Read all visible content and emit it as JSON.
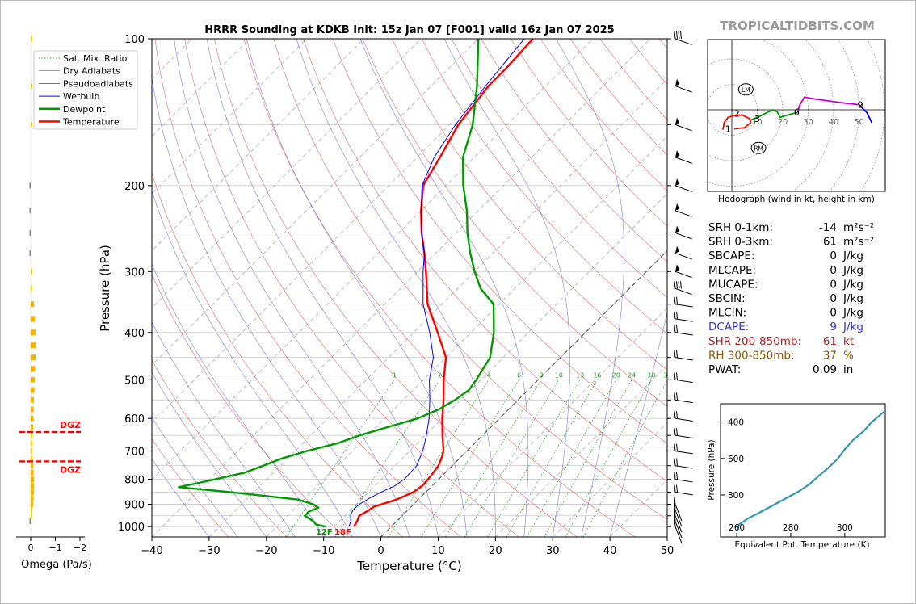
{
  "watermark": "TROPICALTIDBITS.COM",
  "chart_data": [
    {
      "type": "line",
      "subtype": "skew-t log-p sounding",
      "title": "HRRR Sounding at KDKB Init: 15z Jan 07 [F001] valid 16z Jan 07 2025",
      "xlabel": "Temperature (°C)",
      "ylabel": "Pressure (hPa)",
      "xlim": [
        -40,
        50
      ],
      "ylim": [
        1050,
        100
      ],
      "y_scale": "log",
      "x_ticks": [
        "−40",
        "−30",
        "−20",
        "−10",
        "0",
        "10",
        "20",
        "30",
        "40",
        "50"
      ],
      "y_ticks": [
        "100",
        "200",
        "300",
        "400",
        "500",
        "600",
        "700",
        "800",
        "900",
        "1000"
      ],
      "legend_position": "top-left",
      "legend": [
        {
          "label": "Sat. Mix. Ratio",
          "color": "#2ca02c",
          "style": "dotted"
        },
        {
          "label": "Dry Adiabats",
          "color": "#d62728",
          "style": "thin"
        },
        {
          "label": "Pseudoadiabats",
          "color": "#3a3acc",
          "style": "thin"
        },
        {
          "label": "Wetbulb",
          "color": "#0000ff",
          "style": "solid"
        },
        {
          "label": "Dewpoint",
          "color": "#009900",
          "style": "thick"
        },
        {
          "label": "Temperature",
          "color": "#ff0000",
          "style": "thick"
        }
      ],
      "mixing_ratio_labels": [
        "1",
        "2",
        "4",
        "6",
        "8",
        "10",
        "13",
        "16",
        "20",
        "24",
        "30",
        "36"
      ],
      "surface_labels": {
        "dewpoint": "12F",
        "temperature": "18F"
      },
      "series": [
        {
          "name": "Temperature",
          "points": [
            [
              1000,
              -6.5
            ],
            [
              970,
              -7
            ],
            [
              950,
              -7.5
            ],
            [
              930,
              -6.9
            ],
            [
              910,
              -6.5
            ],
            [
              880,
              -3.8
            ],
            [
              850,
              -2.2
            ],
            [
              825,
              -1.7
            ],
            [
              790,
              -1.9
            ],
            [
              750,
              -2.4
            ],
            [
              720,
              -3.3
            ],
            [
              700,
              -4.1
            ],
            [
              675,
              -5.5
            ],
            [
              650,
              -7
            ],
            [
              600,
              -10
            ],
            [
              550,
              -13
            ],
            [
              500,
              -16.5
            ],
            [
              450,
              -20
            ],
            [
              400,
              -25.8
            ],
            [
              350,
              -32.5
            ],
            [
              300,
              -38.5
            ],
            [
              275,
              -42
            ],
            [
              250,
              -46
            ],
            [
              225,
              -50
            ],
            [
              200,
              -54
            ],
            [
              175,
              -56
            ],
            [
              150,
              -58.5
            ],
            [
              125,
              -60
            ],
            [
              115,
              -60
            ],
            [
              100,
              -60.5
            ]
          ]
        },
        {
          "name": "Wetbulb",
          "points": [
            [
              1000,
              -7.4
            ],
            [
              975,
              -8
            ],
            [
              950,
              -9
            ],
            [
              925,
              -9.6
            ],
            [
              900,
              -9.5
            ],
            [
              875,
              -8.8
            ],
            [
              850,
              -7.8
            ],
            [
              825,
              -6.5
            ],
            [
              800,
              -6
            ],
            [
              750,
              -6.2
            ],
            [
              700,
              -7.7
            ],
            [
              650,
              -9.8
            ],
            [
              600,
              -12.3
            ],
            [
              550,
              -15.4
            ],
            [
              500,
              -19
            ],
            [
              450,
              -22.2
            ],
            [
              400,
              -27.2
            ],
            [
              350,
              -33.3
            ],
            [
              300,
              -39
            ],
            [
              275,
              -42
            ],
            [
              250,
              -46
            ],
            [
              225,
              -50
            ],
            [
              200,
              -54.2
            ],
            [
              175,
              -57
            ],
            [
              150,
              -59
            ],
            [
              125,
              -60.5
            ],
            [
              100,
              -62
            ]
          ]
        },
        {
          "name": "Dewpoint",
          "points": [
            [
              1000,
              -11.5
            ],
            [
              990,
              -13.5
            ],
            [
              975,
              -14.5
            ],
            [
              950,
              -17
            ],
            [
              930,
              -17
            ],
            [
              915,
              -16
            ],
            [
              900,
              -17.5
            ],
            [
              880,
              -21
            ],
            [
              850,
              -34
            ],
            [
              830,
              -44
            ],
            [
              800,
              -39
            ],
            [
              775,
              -35
            ],
            [
              750,
              -33
            ],
            [
              725,
              -31
            ],
            [
              700,
              -28
            ],
            [
              675,
              -24
            ],
            [
              650,
              -21.5
            ],
            [
              625,
              -18
            ],
            [
              600,
              -14.3
            ],
            [
              575,
              -12.2
            ],
            [
              550,
              -11
            ],
            [
              525,
              -10.3
            ],
            [
              500,
              -10.8
            ],
            [
              450,
              -12.3
            ],
            [
              400,
              -16
            ],
            [
              350,
              -21
            ],
            [
              325,
              -26
            ],
            [
              300,
              -30
            ],
            [
              275,
              -34
            ],
            [
              250,
              -38
            ],
            [
              225,
              -42
            ],
            [
              200,
              -47
            ],
            [
              175,
              -52
            ],
            [
              150,
              -56
            ],
            [
              125,
              -62
            ],
            [
              100,
              -70
            ]
          ]
        }
      ],
      "wind_barb_levels": [
        "100",
        "125",
        "150",
        "175",
        "200",
        "225",
        "250",
        "275",
        "300",
        "325",
        "350",
        "375",
        "400",
        "450",
        "500",
        "550",
        "600",
        "650",
        "700",
        "750",
        "800",
        "850",
        "900",
        "925",
        "950",
        "975",
        "1000"
      ]
    },
    {
      "type": "bar",
      "subtype": "omega profile",
      "xlabel": "Omega (Pa/s)",
      "x_ticks": [
        "0",
        "−1",
        "−2"
      ],
      "annotations": [
        "DGZ",
        "DGZ"
      ],
      "dgz_levels_hpa": [
        640,
        735
      ],
      "bars": [
        {
          "pressure": 100,
          "value": -0.04,
          "color": "#ffd700"
        },
        {
          "pressure": 125,
          "value": -0.03,
          "color": "#ffd700"
        },
        {
          "pressure": 150,
          "value": -0.02,
          "color": "#ffd700"
        },
        {
          "pressure": 200,
          "value": 0.04,
          "color": "#888888"
        },
        {
          "pressure": 225,
          "value": 0.03,
          "color": "#888888"
        },
        {
          "pressure": 250,
          "value": 0.02,
          "color": "#888888"
        },
        {
          "pressure": 275,
          "value": 0.01,
          "color": "#888888"
        },
        {
          "pressure": 300,
          "value": -0.01,
          "color": "#ffd700"
        },
        {
          "pressure": 325,
          "value": -0.05,
          "color": "#ffd700"
        },
        {
          "pressure": 350,
          "value": -0.14,
          "color": "#f4b400"
        },
        {
          "pressure": 375,
          "value": -0.17,
          "color": "#f4b400"
        },
        {
          "pressure": 400,
          "value": -0.2,
          "color": "#f4b400"
        },
        {
          "pressure": 425,
          "value": -0.21,
          "color": "#f4b400"
        },
        {
          "pressure": 450,
          "value": -0.2,
          "color": "#f4b400"
        },
        {
          "pressure": 475,
          "value": -0.18,
          "color": "#f4b400"
        },
        {
          "pressure": 500,
          "value": -0.16,
          "color": "#f4b400"
        },
        {
          "pressure": 525,
          "value": -0.15,
          "color": "#f4b400"
        },
        {
          "pressure": 550,
          "value": -0.13,
          "color": "#f4b400"
        },
        {
          "pressure": 575,
          "value": -0.12,
          "color": "#f4b400"
        },
        {
          "pressure": 600,
          "value": -0.11,
          "color": "#f4b400"
        },
        {
          "pressure": 625,
          "value": -0.1,
          "color": "#f4b400"
        },
        {
          "pressure": 650,
          "value": -0.08,
          "color": "#ffd700"
        },
        {
          "pressure": 675,
          "value": -0.08,
          "color": "#ffd700"
        },
        {
          "pressure": 700,
          "value": -0.07,
          "color": "#ffd700"
        },
        {
          "pressure": 725,
          "value": -0.08,
          "color": "#ffd700"
        },
        {
          "pressure": 750,
          "value": -0.1,
          "color": "#f4b400"
        },
        {
          "pressure": 775,
          "value": -0.12,
          "color": "#f4b400"
        },
        {
          "pressure": 800,
          "value": -0.14,
          "color": "#f4b400"
        },
        {
          "pressure": 825,
          "value": -0.14,
          "color": "#f4b400"
        },
        {
          "pressure": 850,
          "value": -0.13,
          "color": "#f4b400"
        },
        {
          "pressure": 875,
          "value": -0.12,
          "color": "#f4b400"
        },
        {
          "pressure": 900,
          "value": -0.1,
          "color": "#f4b400"
        },
        {
          "pressure": 925,
          "value": -0.07,
          "color": "#ffd700"
        },
        {
          "pressure": 950,
          "value": -0.03,
          "color": "#ffd700"
        },
        {
          "pressure": 975,
          "value": 0.02,
          "color": "#888888"
        }
      ]
    },
    {
      "type": "line",
      "subtype": "hodograph",
      "xlabel": "Hodograph (wind in kt, height in km)",
      "ring_labels": [
        "10",
        "20",
        "30",
        "40",
        "50"
      ],
      "storm_motion_labels": [
        "LM",
        "RM"
      ],
      "storm_motion_kt": {
        "LM": [
          5.5,
          8
        ],
        "RM": [
          10.5,
          -15
        ]
      },
      "height_labels": [
        {
          "label": "1",
          "u": -1.5,
          "v": -7.5
        },
        {
          "label": "2",
          "u": 2,
          "v": -1.5
        },
        {
          "label": "3",
          "u": 10,
          "v": -3.5
        },
        {
          "label": "6",
          "u": 25.5,
          "v": -0.8
        },
        {
          "label": "9",
          "u": 50.5,
          "v": 2
        }
      ],
      "segments": [
        {
          "name": "0-3 km",
          "color": "#ff0000",
          "points": [
            [
              -3.5,
              -7.8
            ],
            [
              -3,
              -5
            ],
            [
              -1.5,
              -3
            ],
            [
              1,
              -2.2
            ],
            [
              4,
              -2
            ],
            [
              7,
              -3.5
            ],
            [
              7.5,
              -5
            ],
            [
              5,
              -7
            ],
            [
              1,
              -7.5
            ]
          ]
        },
        {
          "name": "3-6 km",
          "color": "#009900",
          "points": [
            [
              7.5,
              -4
            ],
            [
              11,
              -2.5
            ],
            [
              16,
              0
            ],
            [
              17.8,
              -0.7
            ],
            [
              19,
              -3
            ],
            [
              22,
              -2
            ],
            [
              26,
              -1
            ]
          ]
        },
        {
          "name": "6-9 km",
          "color": "#cc00cc",
          "points": [
            [
              26,
              -1
            ],
            [
              26.5,
              1.5
            ],
            [
              28.5,
              5
            ],
            [
              33,
              4.2
            ],
            [
              43,
              2.8
            ],
            [
              50,
              2
            ]
          ]
        },
        {
          "name": "9-12 km",
          "color": "#0000ff",
          "points": [
            [
              50,
              2
            ],
            [
              53,
              -1
            ],
            [
              55,
              -5
            ]
          ]
        }
      ]
    },
    {
      "type": "line",
      "subtype": "theta-e profile",
      "xlabel": "Equivalent Pot. Temperature (K)",
      "ylabel": "Pressure (hPa)",
      "x_ticks": [
        "260",
        "280",
        "300"
      ],
      "y_ticks": [
        "400",
        "600",
        "800"
      ],
      "color": "#3399aa",
      "points": [
        [
          1000,
          260
        ],
        [
          990,
          260.2
        ],
        [
          960,
          261
        ],
        [
          930,
          264
        ],
        [
          900,
          268
        ],
        [
          860,
          273
        ],
        [
          820,
          278
        ],
        [
          780,
          283
        ],
        [
          740,
          287
        ],
        [
          700,
          290
        ],
        [
          650,
          294
        ],
        [
          600,
          297.5
        ],
        [
          550,
          300
        ],
        [
          500,
          303
        ],
        [
          450,
          307
        ],
        [
          400,
          310
        ],
        [
          350,
          314
        ],
        [
          300,
          321
        ],
        [
          275,
          331
        ]
      ]
    }
  ],
  "indices": [
    {
      "label": "SRH 0-1km:",
      "value": "-14",
      "unit": "m²s⁻²",
      "color": "#000000"
    },
    {
      "label": "SRH 0-3km:",
      "value": "61",
      "unit": "m²s⁻²",
      "color": "#000000"
    },
    {
      "label": "SBCAPE:",
      "value": "0",
      "unit": "J/kg",
      "color": "#000000"
    },
    {
      "label": "MLCAPE:",
      "value": "0",
      "unit": "J/kg",
      "color": "#000000"
    },
    {
      "label": "MUCAPE:",
      "value": "0",
      "unit": "J/kg",
      "color": "#000000"
    },
    {
      "label": "SBCIN:",
      "value": "0",
      "unit": "J/kg",
      "color": "#000000"
    },
    {
      "label": "MLCIN:",
      "value": "0",
      "unit": "J/kg",
      "color": "#000000"
    },
    {
      "label": "DCAPE:",
      "value": "9",
      "unit": "J/kg",
      "color": "#3333cc"
    },
    {
      "label": "SHR 200-850mb:",
      "value": "61",
      "unit": "kt",
      "color": "#b22222"
    },
    {
      "label": "RH 300-850mb:",
      "value": "37",
      "unit": "%",
      "color": "#8b5a00"
    },
    {
      "label": "PWAT:",
      "value": "0.09",
      "unit": "in",
      "color": "#000000"
    }
  ]
}
